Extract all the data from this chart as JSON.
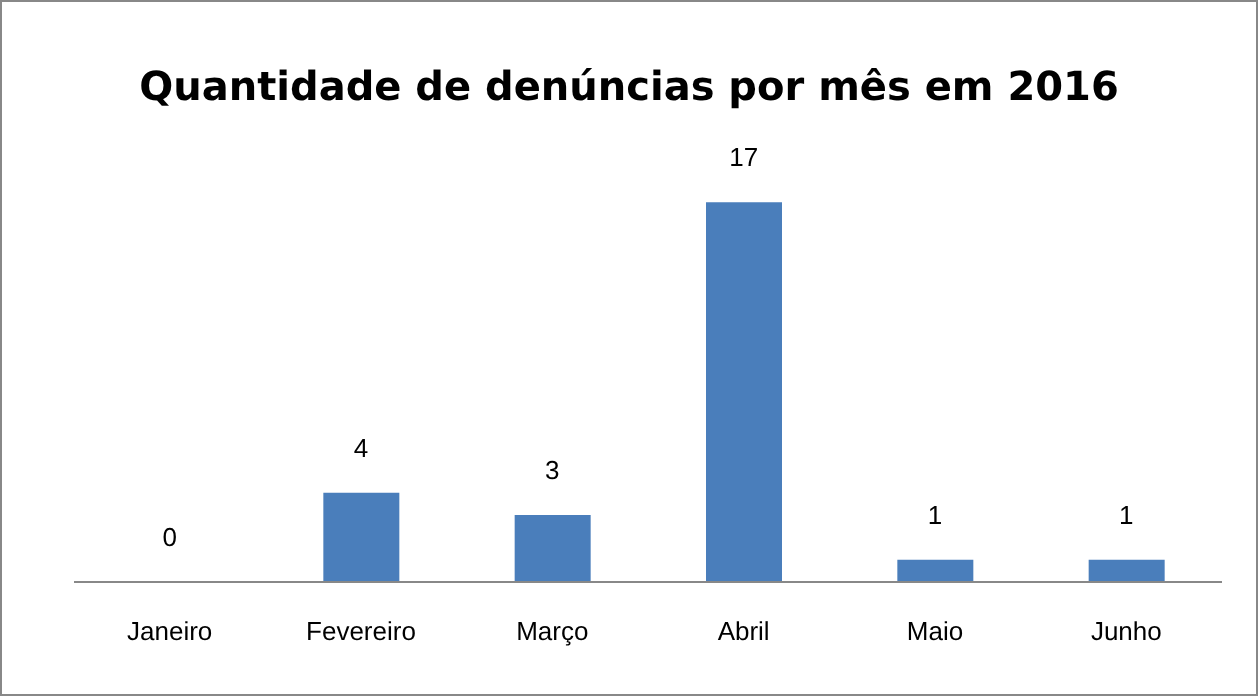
{
  "chart_data": {
    "type": "bar",
    "title": "Quantidade de denúncias por mês em 2016",
    "categories": [
      "Janeiro",
      "Fevereiro",
      "Março",
      "Abril",
      "Maio",
      "Junho"
    ],
    "values": [
      0,
      4,
      3,
      17,
      1,
      1
    ],
    "color": "#4a7ebb",
    "data_labels": true,
    "tick_labels": "x"
  }
}
